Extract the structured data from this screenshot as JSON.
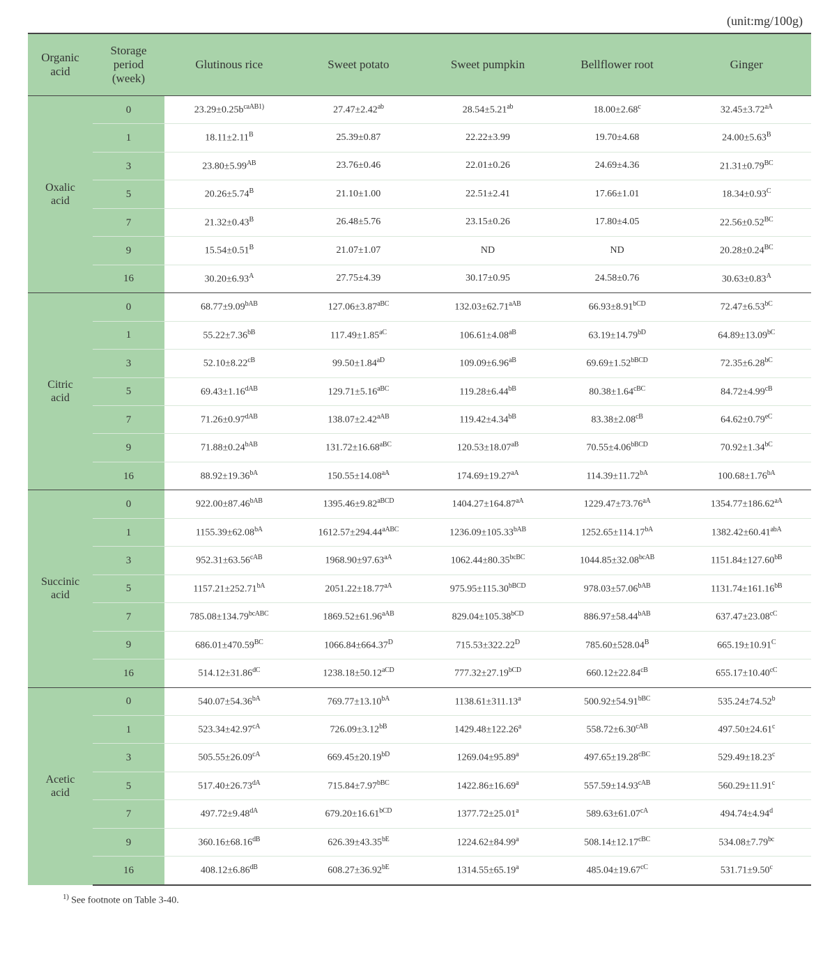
{
  "unit_label": "(unit:mg/100g)",
  "columns": {
    "oa": "Organic\nacid",
    "sp": "Storage\nperiod\n(week)",
    "c1": "Glutinous rice",
    "c2": "Sweet potato",
    "c3": "Sweet pumpkin",
    "c4": "Bellflower root",
    "c5": "Ginger"
  },
  "weeks": [
    "0",
    "1",
    "3",
    "5",
    "7",
    "9",
    "16"
  ],
  "groups": [
    {
      "name": "Oxalic\nacid",
      "rows": [
        {
          "c1": {
            "v": "23.29±0.25b",
            "s": "caAB1)"
          },
          "c2": {
            "v": "27.47±2.42",
            "s": "ab"
          },
          "c3": {
            "v": "28.54±5.21",
            "s": "ab"
          },
          "c4": {
            "v": "18.00±2.68",
            "s": "c"
          },
          "c5": {
            "v": "32.45±3.72",
            "s": "aA"
          }
        },
        {
          "c1": {
            "v": "18.11±2.11",
            "s": "B"
          },
          "c2": {
            "v": "25.39±0.87",
            "s": ""
          },
          "c3": {
            "v": "22.22±3.99",
            "s": ""
          },
          "c4": {
            "v": "19.70±4.68",
            "s": ""
          },
          "c5": {
            "v": "24.00±5.63",
            "s": "B"
          }
        },
        {
          "c1": {
            "v": "23.80±5.99",
            "s": "AB"
          },
          "c2": {
            "v": "23.76±0.46",
            "s": ""
          },
          "c3": {
            "v": "22.01±0.26",
            "s": ""
          },
          "c4": {
            "v": "24.69±4.36",
            "s": ""
          },
          "c5": {
            "v": "21.31±0.79",
            "s": "BC"
          }
        },
        {
          "c1": {
            "v": "20.26±5.74",
            "s": "B"
          },
          "c2": {
            "v": "21.10±1.00",
            "s": ""
          },
          "c3": {
            "v": "22.51±2.41",
            "s": ""
          },
          "c4": {
            "v": "17.66±1.01",
            "s": ""
          },
          "c5": {
            "v": "18.34±0.93",
            "s": "C"
          }
        },
        {
          "c1": {
            "v": "21.32±0.43",
            "s": "B"
          },
          "c2": {
            "v": "26.48±5.76",
            "s": ""
          },
          "c3": {
            "v": "23.15±0.26",
            "s": ""
          },
          "c4": {
            "v": "17.80±4.05",
            "s": ""
          },
          "c5": {
            "v": "22.56±0.52",
            "s": "BC"
          }
        },
        {
          "c1": {
            "v": "15.54±0.51",
            "s": "B"
          },
          "c2": {
            "v": "21.07±1.07",
            "s": ""
          },
          "c3": {
            "v": "ND",
            "s": ""
          },
          "c4": {
            "v": "ND",
            "s": ""
          },
          "c5": {
            "v": "20.28±0.24",
            "s": "BC"
          }
        },
        {
          "c1": {
            "v": "30.20±6.93",
            "s": "A"
          },
          "c2": {
            "v": "27.75±4.39",
            "s": ""
          },
          "c3": {
            "v": "30.17±0.95",
            "s": ""
          },
          "c4": {
            "v": "24.58±0.76",
            "s": ""
          },
          "c5": {
            "v": "30.63±0.83",
            "s": "A"
          }
        }
      ]
    },
    {
      "name": "Citric\nacid",
      "rows": [
        {
          "c1": {
            "v": "68.77±9.09",
            "s": "bAB"
          },
          "c2": {
            "v": "127.06±3.87",
            "s": "aBC"
          },
          "c3": {
            "v": "132.03±62.71",
            "s": "aAB"
          },
          "c4": {
            "v": "66.93±8.91",
            "s": "bCD"
          },
          "c5": {
            "v": "72.47±6.53",
            "s": "bC"
          }
        },
        {
          "c1": {
            "v": "55.22±7.36",
            "s": "bB"
          },
          "c2": {
            "v": "117.49±1.85",
            "s": "aC"
          },
          "c3": {
            "v": "106.61±4.08",
            "s": "aB"
          },
          "c4": {
            "v": "63.19±14.79",
            "s": "bD"
          },
          "c5": {
            "v": "64.89±13.09",
            "s": "bC"
          }
        },
        {
          "c1": {
            "v": "52.10±8.22",
            "s": "cB"
          },
          "c2": {
            "v": "99.50±1.84",
            "s": "aD"
          },
          "c3": {
            "v": "109.09±6.96",
            "s": "aB"
          },
          "c4": {
            "v": "69.69±1.52",
            "s": "bBCD"
          },
          "c5": {
            "v": "72.35±6.28",
            "s": "bC"
          }
        },
        {
          "c1": {
            "v": "69.43±1.16",
            "s": "dAB"
          },
          "c2": {
            "v": "129.71±5.16",
            "s": "aBC"
          },
          "c3": {
            "v": "119.28±6.44",
            "s": "bB"
          },
          "c4": {
            "v": "80.38±1.64",
            "s": "cBC"
          },
          "c5": {
            "v": "84.72±4.99",
            "s": "cB"
          }
        },
        {
          "c1": {
            "v": "71.26±0.97",
            "s": "dAB"
          },
          "c2": {
            "v": "138.07±2.42",
            "s": "aAB"
          },
          "c3": {
            "v": "119.42±4.34",
            "s": "bB"
          },
          "c4": {
            "v": "83.38±2.08",
            "s": "cB"
          },
          "c5": {
            "v": "64.62±0.79",
            "s": "eC"
          }
        },
        {
          "c1": {
            "v": "71.88±0.24",
            "s": "bAB"
          },
          "c2": {
            "v": "131.72±16.68",
            "s": "aBC"
          },
          "c3": {
            "v": "120.53±18.07",
            "s": "aB"
          },
          "c4": {
            "v": "70.55±4.06",
            "s": "bBCD"
          },
          "c5": {
            "v": "70.92±1.34",
            "s": "bC"
          }
        },
        {
          "c1": {
            "v": "88.92±19.36",
            "s": "bA"
          },
          "c2": {
            "v": "150.55±14.08",
            "s": "aA"
          },
          "c3": {
            "v": "174.69±19.27",
            "s": "aA"
          },
          "c4": {
            "v": "114.39±11.72",
            "s": "bA"
          },
          "c5": {
            "v": "100.68±1.76",
            "s": "bA"
          }
        }
      ]
    },
    {
      "name": "Succinic\nacid",
      "rows": [
        {
          "c1": {
            "v": "922.00±87.46",
            "s": "bAB"
          },
          "c2": {
            "v": "1395.46±9.82",
            "s": "aBCD"
          },
          "c3": {
            "v": "1404.27±164.87",
            "s": "aA"
          },
          "c4": {
            "v": "1229.47±73.76",
            "s": "aA"
          },
          "c5": {
            "v": "1354.77±186.62",
            "s": "aA"
          }
        },
        {
          "c1": {
            "v": "1155.39±62.08",
            "s": "bA"
          },
          "c2": {
            "v": "1612.57±294.44",
            "s": "aABC"
          },
          "c3": {
            "v": "1236.09±105.33",
            "s": "bAB"
          },
          "c4": {
            "v": "1252.65±114.17",
            "s": "bA"
          },
          "c5": {
            "v": "1382.42±60.41",
            "s": "abA"
          }
        },
        {
          "c1": {
            "v": "952.31±63.56",
            "s": "cAB"
          },
          "c2": {
            "v": "1968.90±97.63",
            "s": "aA"
          },
          "c3": {
            "v": "1062.44±80.35",
            "s": "bcBC"
          },
          "c4": {
            "v": "1044.85±32.08",
            "s": "bcAB"
          },
          "c5": {
            "v": "1151.84±127.60",
            "s": "bB"
          }
        },
        {
          "c1": {
            "v": "1157.21±252.71",
            "s": "bA"
          },
          "c2": {
            "v": "2051.22±18.77",
            "s": "aA"
          },
          "c3": {
            "v": "975.95±115.30",
            "s": "bBCD"
          },
          "c4": {
            "v": "978.03±57.06",
            "s": "bAB"
          },
          "c5": {
            "v": "1131.74±161.16",
            "s": "bB"
          }
        },
        {
          "c1": {
            "v": "785.08±134.79",
            "s": "bcABC"
          },
          "c2": {
            "v": "1869.52±61.96",
            "s": "aAB"
          },
          "c3": {
            "v": "829.04±105.38",
            "s": "bCD"
          },
          "c4": {
            "v": "886.97±58.44",
            "s": "bAB"
          },
          "c5": {
            "v": "637.47±23.08",
            "s": "cC"
          }
        },
        {
          "c1": {
            "v": "686.01±470.59",
            "s": "BC"
          },
          "c2": {
            "v": "1066.84±664.37",
            "s": "D"
          },
          "c3": {
            "v": "715.53±322.22",
            "s": "D"
          },
          "c4": {
            "v": "785.60±528.04",
            "s": "B"
          },
          "c5": {
            "v": "665.19±10.91",
            "s": "C"
          }
        },
        {
          "c1": {
            "v": "514.12±31.86",
            "s": "dC"
          },
          "c2": {
            "v": "1238.18±50.12",
            "s": "aCD"
          },
          "c3": {
            "v": "777.32±27.19",
            "s": "bCD"
          },
          "c4": {
            "v": "660.12±22.84",
            "s": "cB"
          },
          "c5": {
            "v": "655.17±10.40",
            "s": "cC"
          }
        }
      ]
    },
    {
      "name": "Acetic\nacid",
      "rows": [
        {
          "c1": {
            "v": "540.07±54.36",
            "s": "bA"
          },
          "c2": {
            "v": "769.77±13.10",
            "s": "bA"
          },
          "c3": {
            "v": "1138.61±311.13",
            "s": "a"
          },
          "c4": {
            "v": "500.92±54.91",
            "s": "bBC"
          },
          "c5": {
            "v": "535.24±74.52",
            "s": "b"
          }
        },
        {
          "c1": {
            "v": "523.34±42.97",
            "s": "cA"
          },
          "c2": {
            "v": "726.09±3.12",
            "s": "bB"
          },
          "c3": {
            "v": "1429.48±122.26",
            "s": "a"
          },
          "c4": {
            "v": "558.72±6.30",
            "s": "cAB"
          },
          "c5": {
            "v": "497.50±24.61",
            "s": "c"
          }
        },
        {
          "c1": {
            "v": "505.55±26.09",
            "s": "cA"
          },
          "c2": {
            "v": "669.45±20.19",
            "s": "bD"
          },
          "c3": {
            "v": "1269.04±95.89",
            "s": "a"
          },
          "c4": {
            "v": "497.65±19.28",
            "s": "cBC"
          },
          "c5": {
            "v": "529.49±18.23",
            "s": "c"
          }
        },
        {
          "c1": {
            "v": "517.40±26.73",
            "s": "dA"
          },
          "c2": {
            "v": "715.84±7.97",
            "s": "bBC"
          },
          "c3": {
            "v": "1422.86±16.69",
            "s": "a"
          },
          "c4": {
            "v": "557.59±14.93",
            "s": "cAB"
          },
          "c5": {
            "v": "560.29±11.91",
            "s": "c"
          }
        },
        {
          "c1": {
            "v": "497.72±9.48",
            "s": "dA"
          },
          "c2": {
            "v": "679.20±16.61",
            "s": "bCD"
          },
          "c3": {
            "v": "1377.72±25.01",
            "s": "a"
          },
          "c4": {
            "v": "589.63±61.07",
            "s": "cA"
          },
          "c5": {
            "v": "494.74±4.94",
            "s": "d"
          }
        },
        {
          "c1": {
            "v": "360.16±68.16",
            "s": "dB"
          },
          "c2": {
            "v": "626.39±43.35",
            "s": "bE"
          },
          "c3": {
            "v": "1224.62±84.99",
            "s": "a"
          },
          "c4": {
            "v": "508.14±12.17",
            "s": "cBC"
          },
          "c5": {
            "v": "534.08±7.79",
            "s": "bc"
          }
        },
        {
          "c1": {
            "v": "408.12±6.86",
            "s": "dB"
          },
          "c2": {
            "v": "608.27±36.92",
            "s": "bE"
          },
          "c3": {
            "v": "1314.55±65.19",
            "s": "a"
          },
          "c4": {
            "v": "485.04±19.67",
            "s": "cC"
          },
          "c5": {
            "v": "531.71±9.50",
            "s": "c"
          }
        }
      ]
    }
  ],
  "footnote_marker": "1)",
  "footnote_text": " See footnote on Table 3-40.",
  "colors": {
    "header_bg": "#a9d3aa",
    "text": "#333333",
    "rule": "#444444",
    "row_divider": "#d9e8da"
  }
}
